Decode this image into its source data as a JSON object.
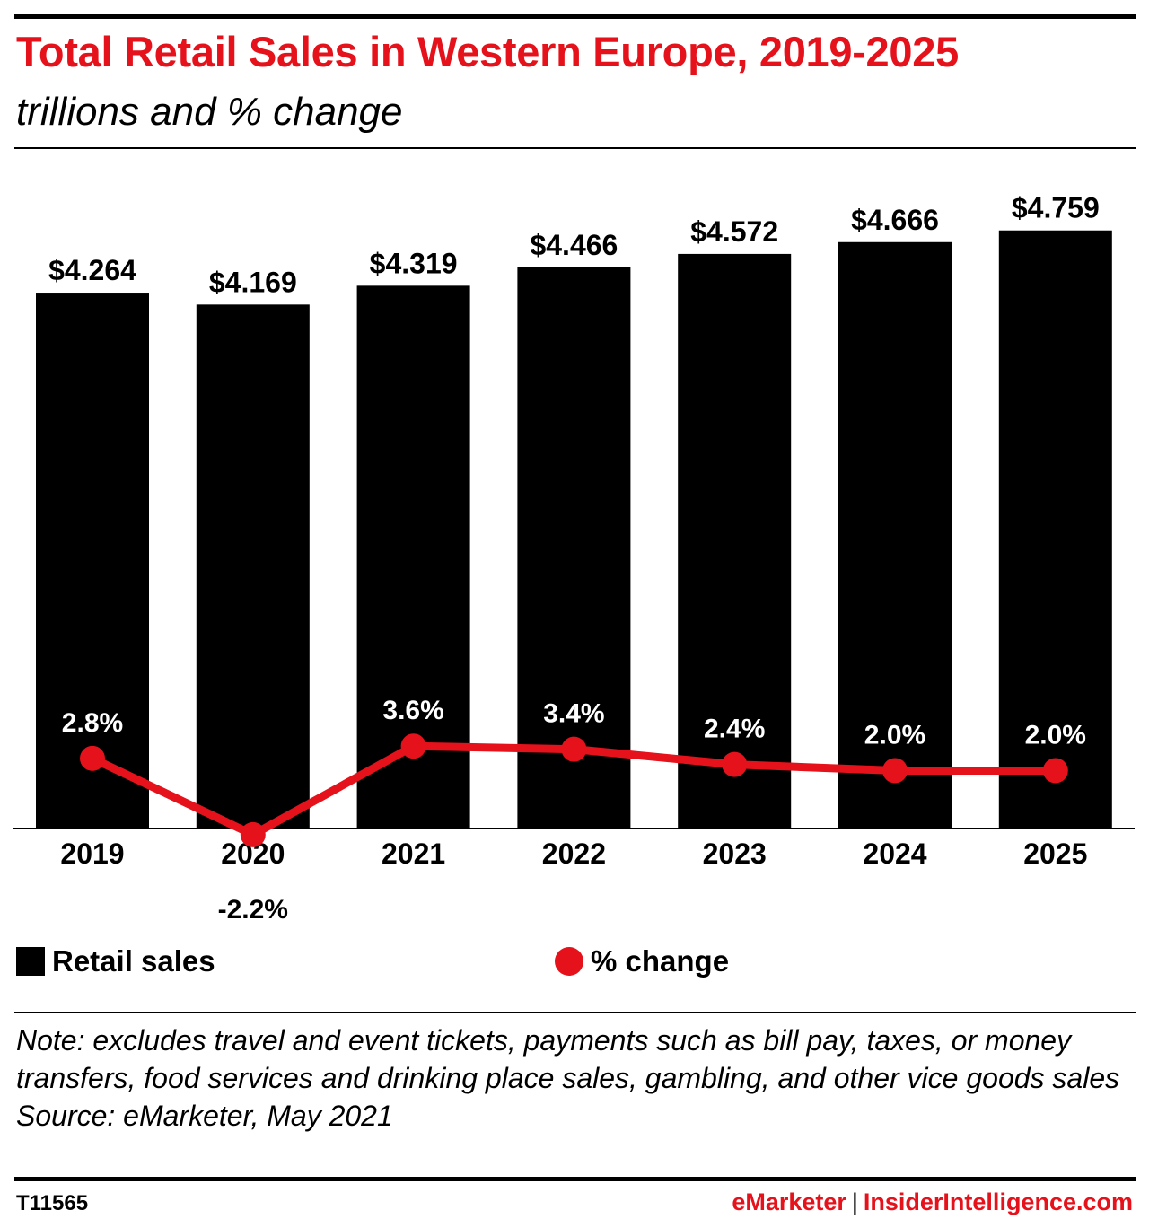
{
  "header": {
    "title": "Total Retail Sales in Western Europe, 2019-2025",
    "subtitle": "trillions and % change"
  },
  "colors": {
    "accent": "#e5121b",
    "bars": "#000000"
  },
  "chart_data": {
    "type": "bar",
    "categories": [
      "2019",
      "2020",
      "2021",
      "2022",
      "2023",
      "2024",
      "2025"
    ],
    "series": [
      {
        "name": "Retail sales",
        "type": "bar",
        "values": [
          4.264,
          4.169,
          4.319,
          4.466,
          4.572,
          4.666,
          4.759
        ],
        "labels": [
          "$4.264",
          "$4.169",
          "$4.319",
          "$4.466",
          "$4.572",
          "$4.666",
          "$4.759"
        ]
      },
      {
        "name": "% change",
        "type": "line",
        "values": [
          2.8,
          -2.2,
          3.6,
          3.4,
          2.4,
          2.0,
          2.0
        ],
        "labels": [
          "2.8%",
          "-2.2%",
          "3.6%",
          "3.4%",
          "2.4%",
          "2.0%",
          "2.0%"
        ]
      }
    ],
    "ylim_bars": [
      0,
      5.2
    ],
    "ylim_line": [
      -2.5,
      41
    ],
    "grid": false,
    "legend_position": "bottom"
  },
  "legend": {
    "bars_label": "Retail sales",
    "line_label": "% change"
  },
  "note": {
    "text": "Note: excludes travel and event tickets, payments such as bill pay, taxes, or money transfers, food services and drinking place sales, gambling, and other vice goods sales",
    "source": "Source: eMarketer, May 2021"
  },
  "footer": {
    "id": "T11565",
    "brand_left": "eMarketer",
    "separator": "|",
    "brand_right": "InsiderIntelligence.com"
  }
}
